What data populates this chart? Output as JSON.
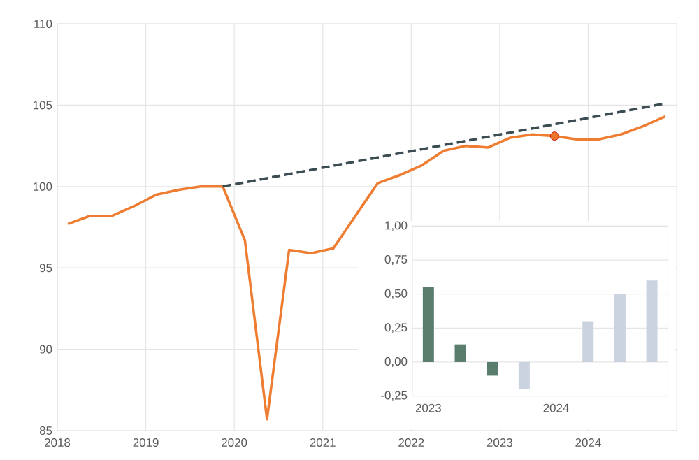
{
  "chart_data": [
    {
      "type": "line",
      "xlim": [
        2018,
        2025
      ],
      "ylim": [
        85,
        110
      ],
      "xticks": [
        2018,
        2019,
        2020,
        2021,
        2022,
        2023,
        2024
      ],
      "yticks": [
        85,
        90,
        95,
        100,
        105,
        110
      ],
      "grid": true,
      "series": [
        {
          "color": "#ee7d31",
          "x": [
            2018.12,
            2018.37,
            2018.62,
            2018.87,
            2019.12,
            2019.37,
            2019.62,
            2019.87,
            2020.12,
            2020.37,
            2020.62,
            2020.87,
            2021.12,
            2021.37,
            2021.62,
            2021.87,
            2022.12,
            2022.37,
            2022.62,
            2022.87,
            2023.12,
            2023.37,
            2023.62,
            2023.87,
            2024.12,
            2024.37,
            2024.62,
            2024.87
          ],
          "values": [
            97.7,
            98.2,
            98.2,
            98.8,
            99.5,
            99.8,
            100.0,
            100.0,
            96.7,
            85.7,
            96.1,
            95.9,
            96.2,
            98.2,
            100.2,
            100.7,
            101.3,
            102.2,
            102.5,
            102.4,
            103.0,
            103.2,
            103.1,
            102.9,
            102.9,
            103.2,
            103.7,
            104.3
          ]
        },
        {
          "color": "#3b4d52",
          "line_style": "dashed",
          "x": [
            2019.87,
            2024.87
          ],
          "values": [
            100.0,
            105.1
          ]
        },
        {
          "type": "scatter",
          "color": "#e9762b",
          "marker": "circle",
          "x": [
            2023.62
          ],
          "values": [
            103.1
          ]
        }
      ]
    },
    {
      "type": "bar",
      "categories": [
        "2023",
        null,
        null,
        null,
        "2024",
        null,
        null,
        null
      ],
      "values": [
        0.55,
        0.13,
        -0.1,
        -0.2,
        null,
        0.3,
        0.5,
        0.6
      ],
      "colors": [
        "#5a7d6e",
        "#5a7d6e",
        "#5a7d6e",
        "#ccd3e0",
        "#ccd3e0",
        "#ccd3e0",
        "#ccd3e0",
        "#ccd3e0"
      ],
      "ylim": [
        -0.25,
        1
      ],
      "yticks": [
        {
          "value": -0.25,
          "label": "-0,25"
        },
        {
          "value": 0,
          "label": "0,00"
        },
        {
          "value": 0.25,
          "label": "0,25"
        },
        {
          "value": 0.5,
          "label": "0,50"
        },
        {
          "value": 0.75,
          "label": "0,75"
        },
        {
          "value": 1,
          "label": "1,00"
        }
      ],
      "grid": "y"
    }
  ]
}
